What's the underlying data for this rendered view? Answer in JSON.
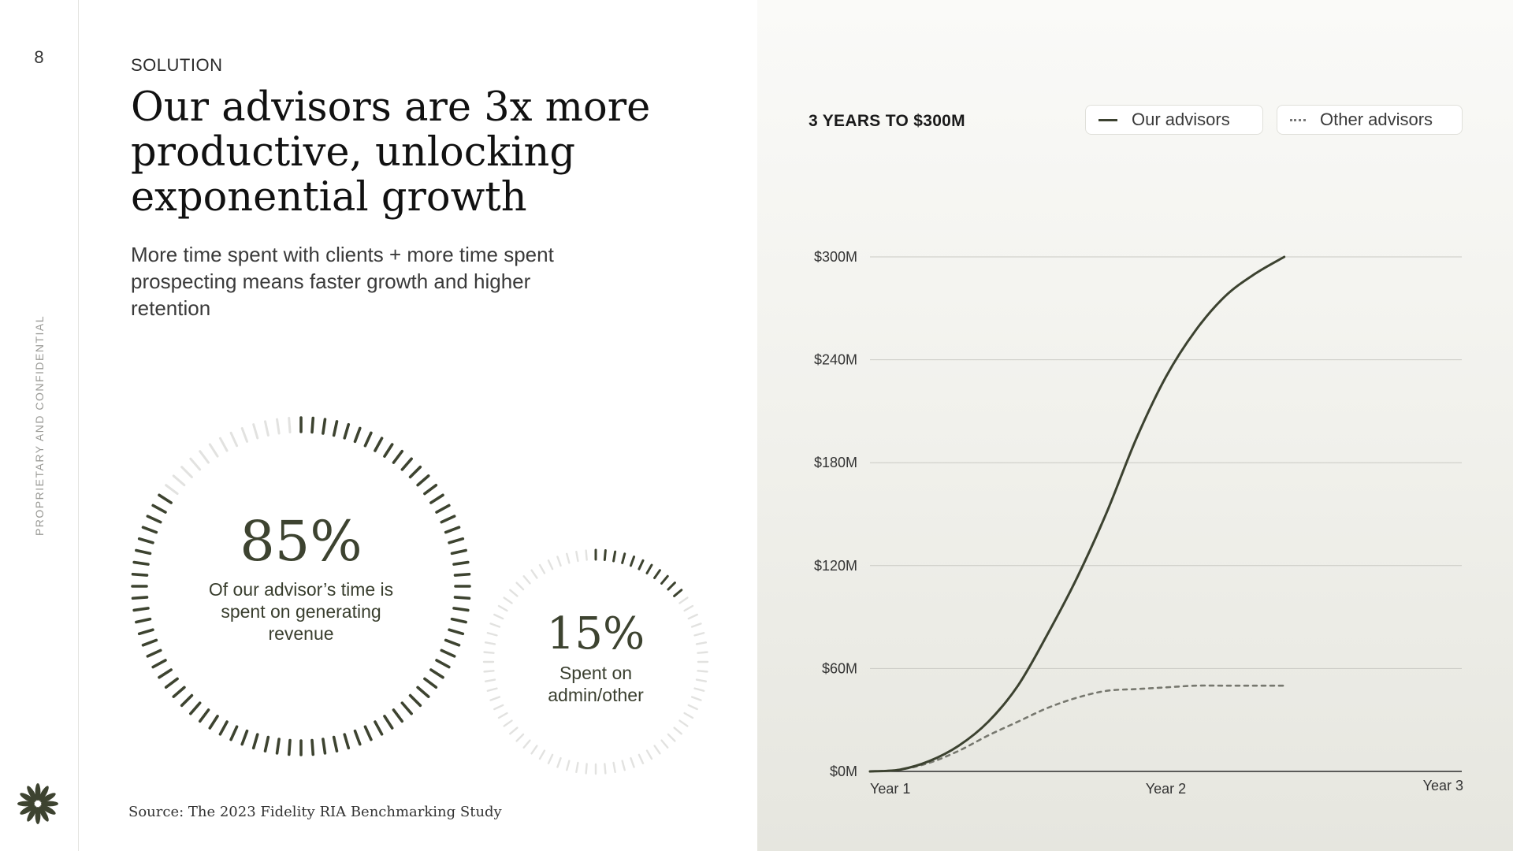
{
  "page": {
    "number": "8",
    "side_label": "PROPRIETARY AND CONFIDENTIAL",
    "eyebrow": "SOLUTION",
    "headline": "Our advisors are 3x more productive, unlocking exponential growth",
    "subhead": "More time spent with clients + more time spent prospecting means faster growth and higher retention",
    "source": "Source: The 2023 Fidelity RIA Benchmarking Study",
    "logo_icon": "flower-logo-icon"
  },
  "gauges": [
    {
      "value": 85,
      "label": "85%",
      "caption": "Of our advisor’s time is spent on generating revenue",
      "color": "#3d4330",
      "track": "#e2e2e0"
    },
    {
      "value": 15,
      "label": "15%",
      "caption_line1": "Spent on",
      "caption_line2": "admin/other",
      "color": "#3d4330",
      "track": "#e2e2e0"
    }
  ],
  "chart_data": {
    "type": "line",
    "title": "3 YEARS TO $300M",
    "legend_placement": "top-right",
    "grid": true,
    "x_ticks": [
      "Year 1",
      "Year 2",
      "Year 3"
    ],
    "xlim": [
      1,
      3
    ],
    "ylim": [
      0,
      300
    ],
    "y_ticks": [
      {
        "value": 0,
        "label": "$0M"
      },
      {
        "value": 60,
        "label": "$60M"
      },
      {
        "value": 120,
        "label": "$120M"
      },
      {
        "value": 180,
        "label": "$180M"
      },
      {
        "value": 240,
        "label": "$240M"
      },
      {
        "value": 300,
        "label": "$300M"
      }
    ],
    "series": [
      {
        "name": "Our advisors",
        "style": "solid",
        "color": "#3c4230",
        "points": [
          [
            1.0,
            0
          ],
          [
            1.1,
            1
          ],
          [
            1.2,
            6
          ],
          [
            1.3,
            15
          ],
          [
            1.4,
            29
          ],
          [
            1.5,
            50
          ],
          [
            1.6,
            80
          ],
          [
            1.7,
            113
          ],
          [
            1.8,
            151
          ],
          [
            1.9,
            194
          ],
          [
            2.0,
            230
          ],
          [
            2.1,
            257
          ],
          [
            2.2,
            277
          ],
          [
            2.3,
            290
          ],
          [
            2.4,
            300
          ]
        ]
      },
      {
        "name": "Other advisors",
        "style": "dotted",
        "color": "#77786f",
        "points": [
          [
            1.0,
            0
          ],
          [
            1.1,
            1
          ],
          [
            1.2,
            5
          ],
          [
            1.3,
            12
          ],
          [
            1.4,
            21
          ],
          [
            1.5,
            29
          ],
          [
            1.6,
            37
          ],
          [
            1.7,
            43
          ],
          [
            1.8,
            47
          ],
          [
            1.9,
            48
          ],
          [
            2.0,
            49
          ],
          [
            2.1,
            50
          ],
          [
            2.2,
            50
          ],
          [
            2.3,
            50
          ],
          [
            2.4,
            50
          ]
        ]
      }
    ]
  }
}
